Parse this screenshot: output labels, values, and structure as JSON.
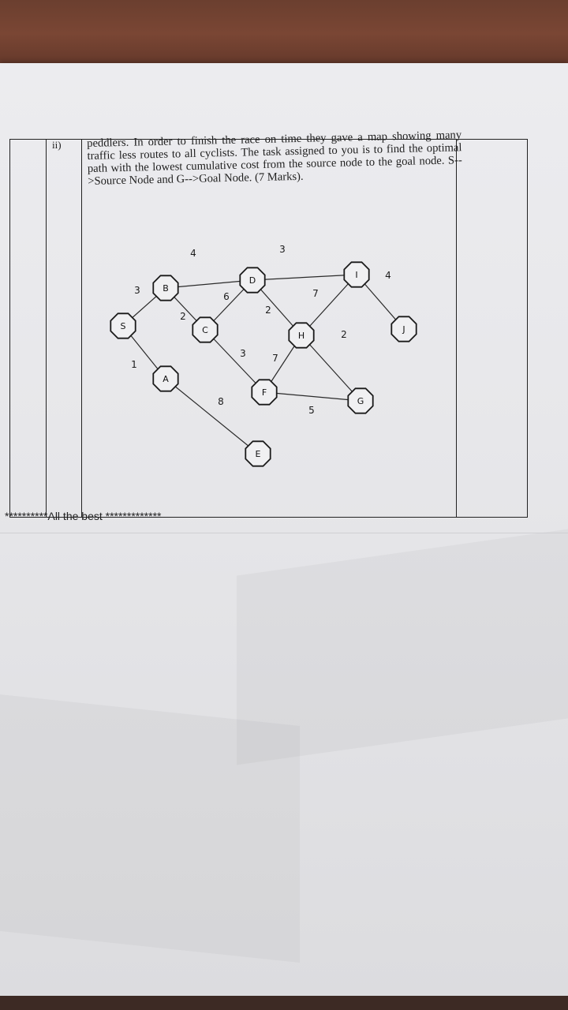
{
  "question": {
    "number": "ii)",
    "text": "peddlers. In order to finish the race on time they gave a map showing many traffic less routes to all cyclists. The task assigned to you is to find the optimal path with the lowest cumulative cost from the source node to the goal node. S-->Source Node and G-->Goal Node. (7 Marks)."
  },
  "graph": {
    "nodes": [
      "S",
      "B",
      "A",
      "C",
      "D",
      "F",
      "E",
      "H",
      "I",
      "G",
      "J"
    ],
    "edges": [
      {
        "from": "S",
        "to": "B",
        "weight": "3"
      },
      {
        "from": "S",
        "to": "A",
        "weight": "1"
      },
      {
        "from": "B",
        "to": "D",
        "weight": "4"
      },
      {
        "from": "B",
        "to": "C",
        "weight": "2"
      },
      {
        "from": "C",
        "to": "D",
        "weight": "6"
      },
      {
        "from": "C",
        "to": "F",
        "weight": "3"
      },
      {
        "from": "D",
        "to": "I",
        "weight": "3"
      },
      {
        "from": "D",
        "to": "H",
        "weight": "2"
      },
      {
        "from": "H",
        "to": "F",
        "weight": "7"
      },
      {
        "from": "H",
        "to": "I",
        "weight": "7"
      },
      {
        "from": "I",
        "to": "J",
        "weight": "4"
      },
      {
        "from": "H",
        "to": "G",
        "weight": "2"
      },
      {
        "from": "F",
        "to": "G",
        "weight": "5"
      },
      {
        "from": "A",
        "to": "E",
        "weight": "8"
      }
    ]
  },
  "footer": {
    "text": "**********All the best *************"
  }
}
